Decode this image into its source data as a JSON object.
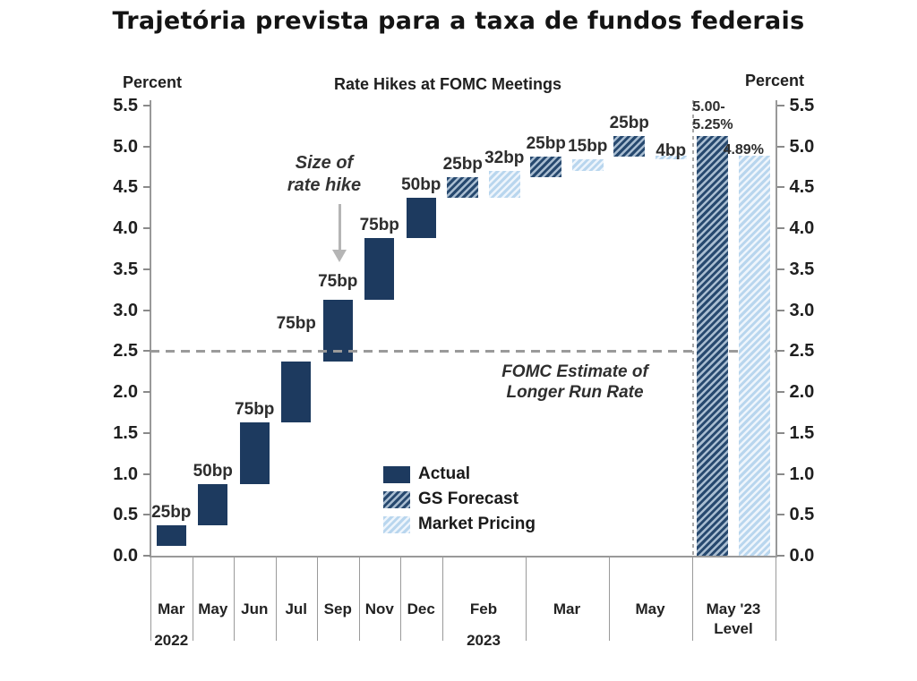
{
  "page_title": "Trajetória prevista para a taxa de fundos federais",
  "chart_data": {
    "type": "bar",
    "subtype": "waterfall",
    "title": "Rate Hikes at FOMC Meetings",
    "left_axis_label": "Percent",
    "right_axis_label": "Percent",
    "ylim": [
      0,
      5.5
    ],
    "ytick_step": 0.5,
    "yticks": [
      "5.5",
      "5.0",
      "4.5",
      "4.0",
      "3.5",
      "3.0",
      "2.5",
      "2.0",
      "1.5",
      "1.0",
      "0.5",
      "0.0"
    ],
    "grid": false,
    "reference_line": {
      "value": 2.5,
      "label": "FOMC Estimate of\nLonger Run Rate"
    },
    "annotation": {
      "text": "Size of\nrate hike",
      "points_to": "Sep 2022 bar label"
    },
    "separator_before_group": "May '23\nLevel",
    "legend": {
      "position": "inside-bottom-center",
      "items": [
        {
          "label": "Actual",
          "style": "actual"
        },
        {
          "label": "GS Forecast",
          "style": "gs"
        },
        {
          "label": "Market Pricing",
          "style": "market"
        }
      ]
    },
    "colors": {
      "actual": "#1d3a5f",
      "gs_forecast_stripe": "#27496f",
      "market_pricing_stripe": "#b9d6ee",
      "reference_dash": "#9a9a9a"
    },
    "groups": [
      {
        "label": "Mar",
        "year_label": "2022",
        "span": 1,
        "bars": [
          {
            "series": "actual",
            "label": "25bp",
            "from": 0.125,
            "to": 0.375
          }
        ]
      },
      {
        "label": "May",
        "span": 1,
        "bars": [
          {
            "series": "actual",
            "label": "50bp",
            "from": 0.375,
            "to": 0.875
          }
        ]
      },
      {
        "label": "Jun",
        "span": 1,
        "bars": [
          {
            "series": "actual",
            "label": "75bp",
            "from": 0.875,
            "to": 1.625
          }
        ]
      },
      {
        "label": "Jul",
        "span": 1,
        "bars": [
          {
            "series": "actual",
            "label": "75bp",
            "from": 1.625,
            "to": 2.375,
            "label_dy": -28
          }
        ]
      },
      {
        "label": "Sep",
        "span": 1,
        "bars": [
          {
            "series": "actual",
            "label": "75bp",
            "from": 2.375,
            "to": 3.125,
            "label_dy": -6
          }
        ]
      },
      {
        "label": "Nov",
        "span": 1,
        "bars": [
          {
            "series": "actual",
            "label": "75bp",
            "from": 3.125,
            "to": 3.875
          }
        ]
      },
      {
        "label": "Dec",
        "span": 1,
        "bars": [
          {
            "series": "actual",
            "label": "50bp",
            "from": 3.875,
            "to": 4.375
          }
        ]
      },
      {
        "label": "Feb",
        "year_label": "2023",
        "span": 2,
        "bars": [
          {
            "series": "gs",
            "label": "25bp",
            "from": 4.375,
            "to": 4.625
          },
          {
            "series": "market",
            "label": "32bp",
            "from": 4.375,
            "to": 4.695
          }
        ]
      },
      {
        "label": "Mar",
        "span": 2,
        "bars": [
          {
            "series": "gs",
            "label": "25bp",
            "from": 4.625,
            "to": 4.875
          },
          {
            "series": "market",
            "label": "15bp",
            "from": 4.695,
            "to": 4.845
          }
        ]
      },
      {
        "label": "May",
        "span": 2,
        "bars": [
          {
            "series": "gs",
            "label": "25bp",
            "from": 4.875,
            "to": 5.125
          },
          {
            "series": "market",
            "label": "4bp",
            "from": 4.845,
            "to": 4.885,
            "label_dy": 9
          }
        ]
      },
      {
        "label": "May '23\nLevel",
        "span": 2,
        "level_section": true,
        "bars": [
          {
            "series": "gs",
            "label": "5.00-\n5.25%",
            "from": 0,
            "to": 5.125,
            "label_anchor": "left",
            "label_dx": -5
          },
          {
            "series": "market",
            "label": "4.89%",
            "from": 0,
            "to": 4.89,
            "label_small": true,
            "label_dx": -12,
            "label_dy": 8
          }
        ]
      }
    ]
  }
}
